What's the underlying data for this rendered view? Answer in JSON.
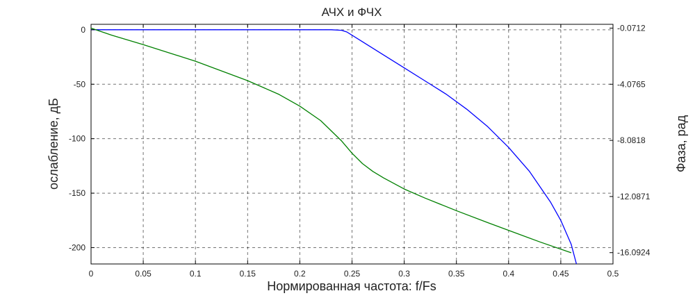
{
  "chart_data": {
    "type": "line",
    "title": "АЧХ и ФЧХ",
    "xlabel": "Нормированная частота: f/Fs",
    "ylabel_left": "ослабление, дБ",
    "ylabel_right": "Фаза, рад",
    "xlim": [
      0,
      0.5
    ],
    "ylim_left": [
      -215,
      5
    ],
    "ylim_right": [
      -16.9,
      0.2
    ],
    "x_ticks": [
      "0",
      "0.05",
      "0.1",
      "0.15",
      "0.2",
      "0.25",
      "0.3",
      "0.35",
      "0.4",
      "0.45",
      "0.5"
    ],
    "y_ticks_left": [
      "0",
      "-50",
      "-100",
      "-150",
      "-200"
    ],
    "y_ticks_right": [
      "-0.0712",
      "-4.0765",
      "-8.0818",
      "-12.0871",
      "-16.0924"
    ],
    "grid": true,
    "series": [
      {
        "axis": "left",
        "color": "#0000ff",
        "x": [
          0,
          0.05,
          0.1,
          0.15,
          0.2,
          0.23,
          0.24,
          0.245,
          0.25,
          0.26,
          0.28,
          0.3,
          0.32,
          0.34,
          0.36,
          0.38,
          0.4,
          0.42,
          0.44,
          0.45,
          0.46,
          0.465
        ],
        "y": [
          0,
          0,
          0,
          0,
          0,
          0,
          -0.5,
          -2,
          -5,
          -11,
          -23,
          -35,
          -47,
          -59,
          -73,
          -89,
          -108,
          -130,
          -158,
          -175,
          -197,
          -215
        ]
      },
      {
        "axis": "right",
        "color": "#008000",
        "x": [
          0,
          0.02,
          0.05,
          0.1,
          0.15,
          0.18,
          0.2,
          0.22,
          0.24,
          0.25,
          0.26,
          0.27,
          0.28,
          0.3,
          0.32,
          0.35,
          0.38,
          0.4,
          0.43,
          0.46
        ],
        "y": [
          -0.0712,
          -0.58,
          -1.25,
          -2.43,
          -3.82,
          -4.8,
          -5.64,
          -6.67,
          -8.12,
          -9.0,
          -9.74,
          -10.3,
          -10.75,
          -11.55,
          -12.2,
          -13.1,
          -13.95,
          -14.5,
          -15.33,
          -16.1
        ]
      }
    ]
  }
}
